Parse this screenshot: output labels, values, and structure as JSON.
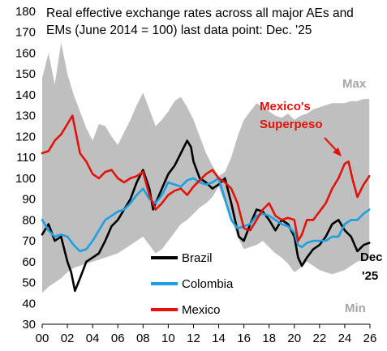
{
  "chart_data": {
    "type": "line",
    "title_lines": [
      "Real effective exchange rates across all major AEs and",
      "EMs (June 2014 = 100) last data point: Dec. '25"
    ],
    "xlabel": "",
    "ylabel": "",
    "xlim": [
      2000,
      2026
    ],
    "ylim": [
      30,
      180
    ],
    "x_tick_labels": [
      "00",
      "02",
      "04",
      "06",
      "08",
      "10",
      "12",
      "14",
      "16",
      "18",
      "20",
      "22",
      "24",
      "26"
    ],
    "y_tick_labels": [
      "30",
      "40",
      "50",
      "60",
      "70",
      "80",
      "90",
      "100",
      "110",
      "120",
      "130",
      "140",
      "150",
      "160",
      "170",
      "180"
    ],
    "band": {
      "max_label": "Max",
      "min_label": "Min",
      "color": "#bfbfbf",
      "x": [
        2000,
        2000.5,
        2001,
        2001.5,
        2002,
        2002.5,
        2003,
        2003.5,
        2004,
        2004.5,
        2005,
        2005.5,
        2006,
        2006.5,
        2007,
        2007.5,
        2008,
        2008.5,
        2009,
        2009.5,
        2010,
        2010.5,
        2011,
        2011.5,
        2012,
        2012.5,
        2013,
        2013.5,
        2014,
        2014.5,
        2015,
        2015.5,
        2016,
        2016.5,
        2017,
        2017.5,
        2018,
        2018.5,
        2019,
        2019.5,
        2020,
        2020.5,
        2021,
        2021.5,
        2022,
        2022.5,
        2023,
        2023.5,
        2024,
        2024.5,
        2025,
        2025.5,
        2025.95
      ],
      "max": [
        148,
        160,
        145,
        165,
        150,
        140,
        132,
        124,
        118,
        126,
        125,
        120,
        116,
        122,
        128,
        135,
        141,
        133,
        125,
        128,
        132,
        137,
        139,
        134,
        128,
        120,
        112,
        106,
        101,
        103,
        110,
        120,
        128,
        132,
        136,
        134,
        132,
        130,
        129,
        131,
        128,
        130,
        131,
        133,
        134,
        135,
        136,
        136,
        136,
        137,
        137,
        138,
        138
      ],
      "min": [
        45,
        48,
        50,
        52,
        55,
        57,
        58,
        59,
        60,
        61,
        62,
        63,
        64,
        66,
        68,
        70,
        72,
        68,
        64,
        66,
        70,
        74,
        78,
        80,
        83,
        86,
        88,
        91,
        96,
        88,
        80,
        72,
        66,
        67,
        68,
        70,
        67,
        64,
        62,
        59,
        55,
        57,
        60,
        58,
        56,
        55,
        54,
        55,
        56,
        58,
        60,
        61,
        62
      ]
    },
    "series": [
      {
        "name": "Brazil",
        "color": "#000000",
        "x": [
          2000,
          2000.5,
          2001,
          2001.5,
          2002,
          2002.3,
          2002.6,
          2003,
          2003.5,
          2004,
          2004.5,
          2005,
          2005.5,
          2006,
          2006.5,
          2007,
          2007.5,
          2008,
          2008.5,
          2008.8,
          2009,
          2009.5,
          2010,
          2010.5,
          2011,
          2011.5,
          2011.8,
          2012,
          2012.5,
          2013,
          2013.5,
          2014,
          2014.5,
          2015,
          2015.3,
          2015.6,
          2016,
          2016.5,
          2017,
          2017.5,
          2018,
          2018.5,
          2019,
          2019.5,
          2020,
          2020.3,
          2020.6,
          2021,
          2021.5,
          2022,
          2022.5,
          2023,
          2023.5,
          2024,
          2024.5,
          2025,
          2025.5,
          2025.95
        ],
        "values": [
          73,
          78,
          70,
          72,
          60,
          55,
          46,
          52,
          60,
          62,
          64,
          70,
          77,
          80,
          85,
          90,
          98,
          104,
          95,
          85,
          88,
          95,
          102,
          106,
          112,
          118,
          115,
          108,
          100,
          98,
          95,
          97,
          100,
          88,
          80,
          72,
          70,
          78,
          85,
          84,
          80,
          75,
          80,
          78,
          72,
          62,
          58,
          62,
          66,
          68,
          72,
          78,
          80,
          75,
          72,
          65,
          68,
          69
        ]
      },
      {
        "name": "Colombia",
        "color": "#1ba1e2",
        "x": [
          2000,
          2000.5,
          2001,
          2001.5,
          2002,
          2002.5,
          2003,
          2003.5,
          2004,
          2004.5,
          2005,
          2005.5,
          2006,
          2006.5,
          2007,
          2007.5,
          2008,
          2008.5,
          2009,
          2009.5,
          2010,
          2010.5,
          2011,
          2011.5,
          2012,
          2012.5,
          2013,
          2013.5,
          2014,
          2014.5,
          2015,
          2015.5,
          2016,
          2016.5,
          2017,
          2017.5,
          2018,
          2018.5,
          2019,
          2019.5,
          2020,
          2020.3,
          2020.6,
          2021,
          2021.5,
          2022,
          2022.5,
          2023,
          2023.5,
          2024,
          2024.5,
          2025,
          2025.5,
          2025.95
        ],
        "values": [
          80,
          75,
          72,
          73,
          72,
          68,
          65,
          66,
          70,
          75,
          80,
          82,
          84,
          85,
          88,
          92,
          95,
          90,
          88,
          92,
          98,
          97,
          96,
          99,
          100,
          98,
          97,
          98,
          100,
          90,
          80,
          76,
          77,
          78,
          82,
          83,
          82,
          80,
          78,
          77,
          74,
          68,
          67,
          69,
          70,
          70,
          70,
          72,
          72,
          78,
          80,
          80,
          83,
          85
        ]
      },
      {
        "name": "Mexico",
        "color": "#e3120b",
        "x": [
          2000,
          2000.5,
          2001,
          2001.5,
          2002,
          2002.4,
          2002.8,
          2003,
          2003.5,
          2004,
          2004.5,
          2005,
          2005.5,
          2006,
          2006.5,
          2007,
          2007.5,
          2008,
          2008.5,
          2009,
          2009.5,
          2010,
          2010.5,
          2011,
          2011.5,
          2012,
          2012.5,
          2013,
          2013.5,
          2014,
          2014.5,
          2015,
          2015.5,
          2016,
          2016.5,
          2017,
          2017.5,
          2018,
          2018.5,
          2019,
          2019.5,
          2020,
          2020.3,
          2020.6,
          2021,
          2021.5,
          2022,
          2022.5,
          2023,
          2023.5,
          2024,
          2024.3,
          2024.6,
          2025,
          2025.5,
          2025.95
        ],
        "values": [
          112,
          113,
          118,
          121,
          126,
          130,
          118,
          112,
          108,
          102,
          100,
          103,
          104,
          100,
          98,
          100,
          101,
          103,
          92,
          85,
          88,
          92,
          94,
          95,
          92,
          96,
          99,
          102,
          104,
          100,
          98,
          95,
          88,
          76,
          75,
          80,
          85,
          88,
          82,
          80,
          81,
          80,
          70,
          73,
          80,
          80,
          84,
          88,
          95,
          100,
          107,
          108,
          100,
          91,
          97,
          101
        ]
      }
    ],
    "annotation_lines": [
      "Mexico's",
      "Superpeso"
    ],
    "last_point_lines": [
      "Dec",
      "'25"
    ]
  }
}
